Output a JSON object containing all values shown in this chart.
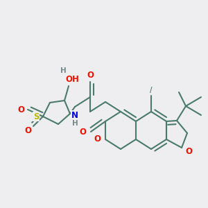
{
  "bg_color": "#eeeef0",
  "bond_color": "#4a7a6a",
  "bond_width": 1.5,
  "atom_colors": {
    "O": "#ee1100",
    "N": "#0000dd",
    "S": "#bbbb00",
    "H": "#778888",
    "C": "#4a7a6a"
  }
}
